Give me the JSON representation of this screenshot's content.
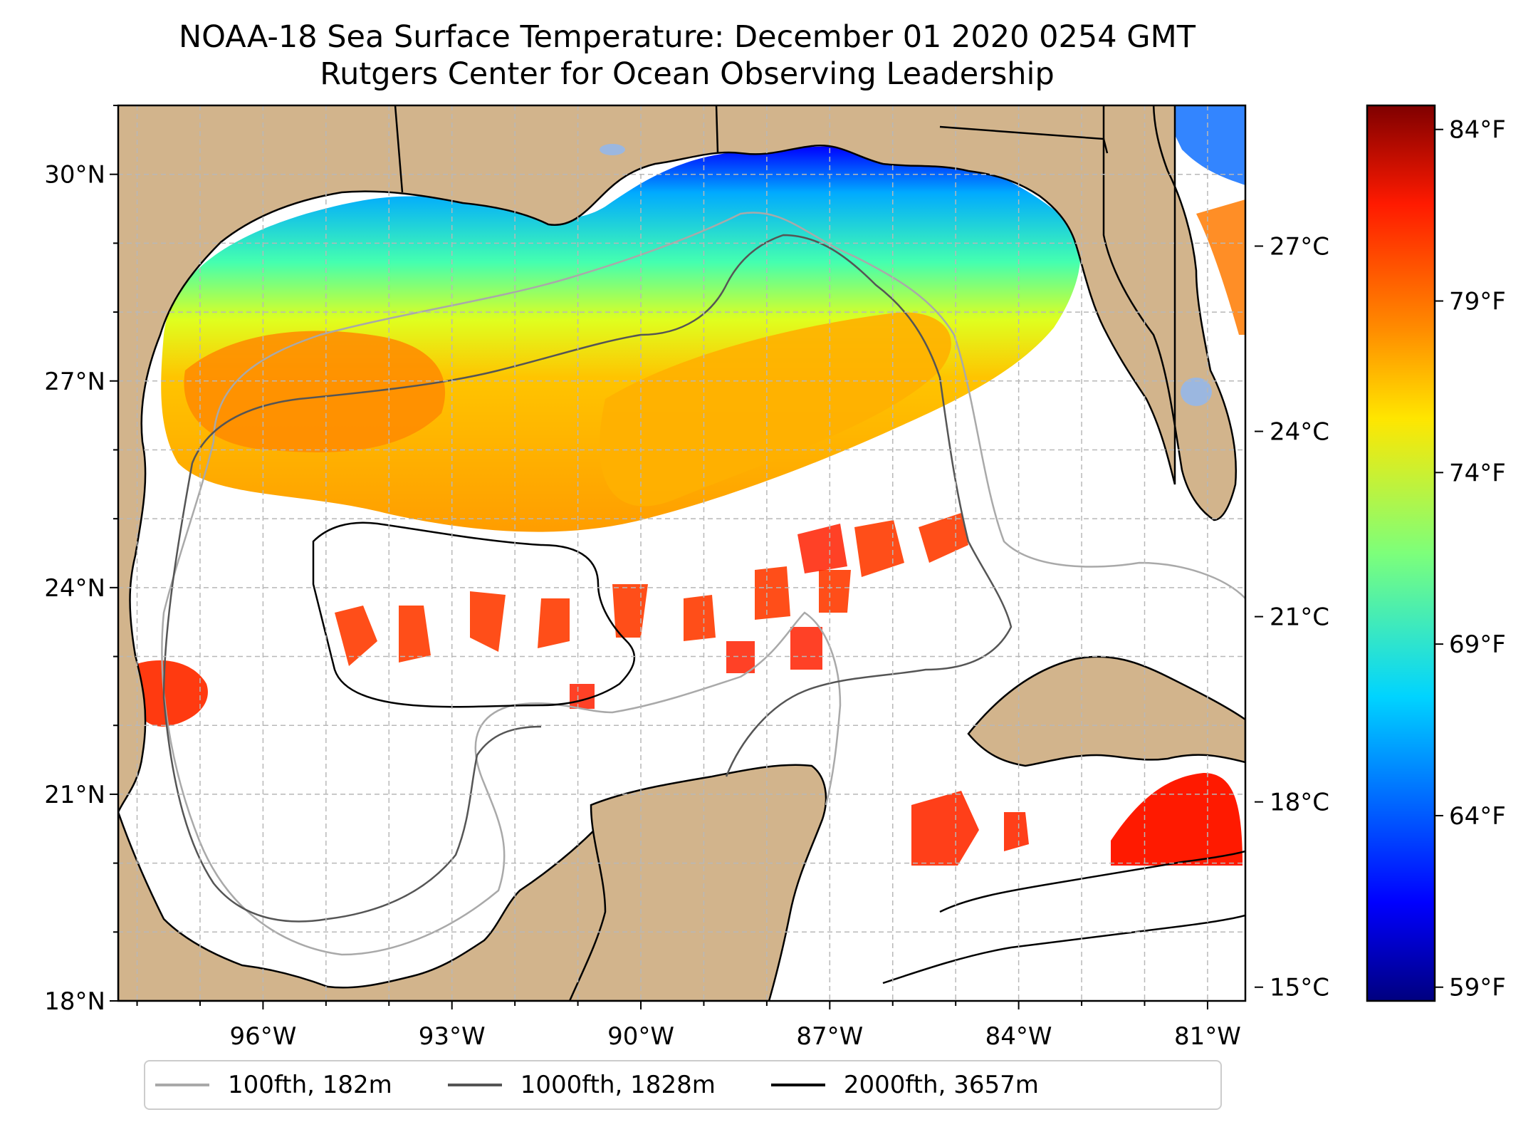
{
  "title": {
    "line1": "NOAA-18 Sea Surface Temperature: December 01 2020 0254 GMT",
    "line2": "Rutgers Center for Ocean Observing Leadership"
  },
  "map": {
    "lon_ticks": [
      "96°W",
      "93°W",
      "90°W",
      "87°W",
      "84°W",
      "81°W"
    ],
    "lat_ticks": [
      "30°N",
      "27°N",
      "24°N",
      "21°N",
      "18°N"
    ],
    "lon_range": [
      -98.3,
      -80.4
    ],
    "lat_range": [
      18.0,
      31.0
    ],
    "colors": {
      "land": "#d2b48c",
      "lake": "#9bb7e0",
      "grid": "#b8b8b8",
      "background": "#ffffff"
    }
  },
  "colorbar": {
    "celsius_ticks": [
      "27°C",
      "24°C",
      "21°C",
      "18°C",
      "15°C"
    ],
    "fahrenheit_ticks": [
      "84°F",
      "79°F",
      "74°F",
      "69°F",
      "64°F",
      "59°F"
    ],
    "range_f": [
      58.6,
      84.7
    ],
    "colormap": "jet"
  },
  "legend": [
    {
      "label": "100fth, 182m",
      "color": "#a9a9a9"
    },
    {
      "label": "1000fth, 1828m",
      "color": "#555555"
    },
    {
      "label": "2000fth, 3657m",
      "color": "#000000"
    }
  ]
}
